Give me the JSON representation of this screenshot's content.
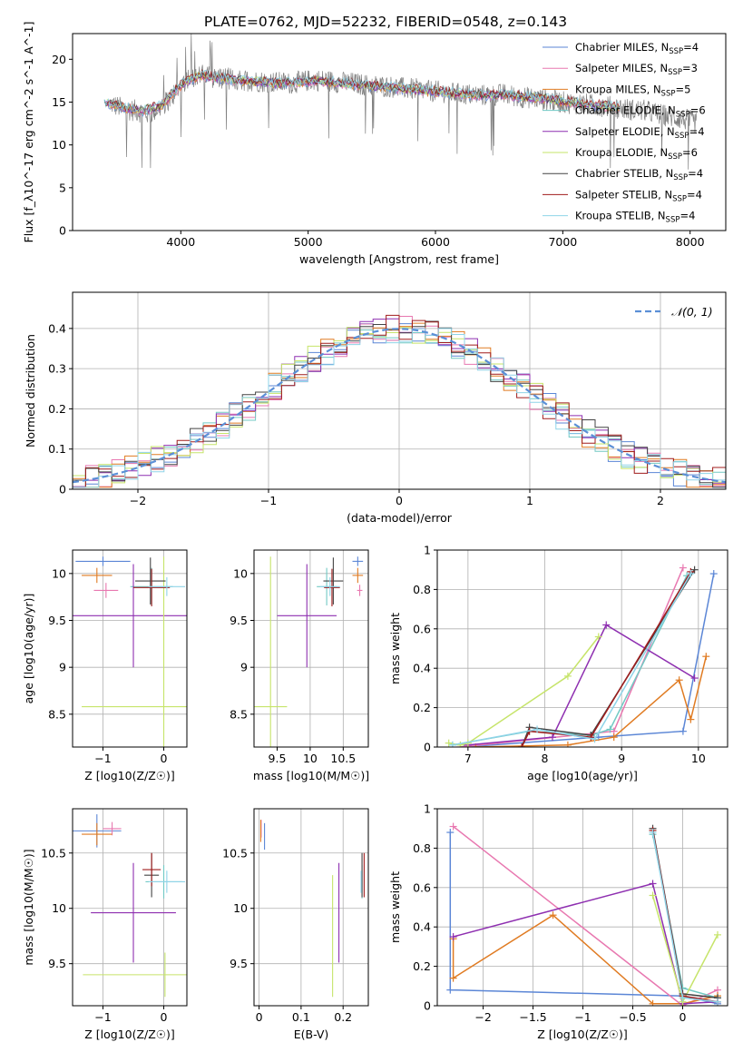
{
  "figure_title": "PLATE=0762, MJD=52232, FIBERID=0548, z=0.143",
  "models": [
    {
      "name": "Chabrier MILES",
      "nssp": "4",
      "color": "#5b86d6"
    },
    {
      "name": "Salpeter MILES",
      "nssp": "3",
      "color": "#e878b0"
    },
    {
      "name": "Kroupa MILES",
      "nssp": "5",
      "color": "#e07b22"
    },
    {
      "name": "Chabrier ELODIE",
      "nssp": "6",
      "color": "#72c9c4"
    },
    {
      "name": "Salpeter ELODIE",
      "nssp": "4",
      "color": "#8e2fb0"
    },
    {
      "name": "Kroupa ELODIE",
      "nssp": "6",
      "color": "#c6e46a"
    },
    {
      "name": "Chabrier STELIB",
      "nssp": "4",
      "color": "#444444"
    },
    {
      "name": "Salpeter STELIB",
      "nssp": "4",
      "color": "#a01c1c"
    },
    {
      "name": "Kroupa STELIB",
      "nssp": "4",
      "color": "#8fd4e8"
    }
  ],
  "chart_data": [
    {
      "id": "spectrum",
      "type": "line",
      "xlabel": "wavelength [Angstrom, rest frame]",
      "ylabel": "Flux [f_λ10^-17 erg cm^-2 s^-1 A^-1]",
      "xlim": [
        3150,
        8280
      ],
      "ylim": [
        0,
        23
      ],
      "xticks": [
        4000,
        5000,
        6000,
        7000,
        8000
      ],
      "yticks": [
        0,
        5,
        10,
        15,
        20
      ],
      "data_color": "#808080",
      "data_x": [
        3450,
        3550,
        3650,
        3750,
        3850,
        3950,
        4050,
        4150,
        4250,
        4350,
        4450,
        4550,
        4650,
        4750,
        4850,
        4950,
        5050,
        5150,
        5250,
        5350,
        5450,
        5550,
        5650,
        5750,
        5850,
        5950,
        6050,
        6150,
        6250,
        6350,
        6450,
        6550,
        6650,
        6750,
        6850,
        6950,
        7050,
        7150,
        7250,
        7350,
        7450,
        7550,
        7650,
        7750,
        7850,
        7950,
        8050
      ],
      "data_y": [
        14.8,
        14.2,
        14.0,
        13.6,
        14.5,
        16.0,
        17.8,
        18.2,
        17.9,
        17.8,
        17.6,
        17.5,
        17.4,
        17.3,
        17.2,
        17.4,
        17.6,
        17.5,
        17.3,
        17.2,
        17.0,
        16.9,
        16.8,
        16.6,
        16.5,
        16.3,
        16.2,
        16.0,
        15.9,
        15.8,
        15.8,
        15.9,
        15.6,
        15.5,
        15.3,
        15.1,
        14.9,
        14.8,
        14.6,
        14.5,
        14.3,
        14.1,
        14.0,
        13.6,
        13.3,
        13.0,
        12.6
      ],
      "model_x": [
        3400,
        3550,
        3700,
        3850,
        4000,
        4150,
        4300,
        4450,
        4600,
        4750,
        4900,
        5050,
        5200,
        5350,
        5500,
        5650,
        5800,
        5950,
        6100,
        6250,
        6400,
        6550,
        6700,
        6850,
        7000,
        7150,
        7300,
        7450
      ],
      "model_y": [
        15.0,
        14.3,
        14.0,
        14.6,
        17.0,
        18.2,
        17.8,
        17.5,
        17.4,
        17.2,
        17.3,
        17.5,
        17.3,
        17.1,
        16.9,
        16.7,
        16.5,
        16.3,
        16.1,
        15.9,
        15.8,
        15.9,
        15.6,
        15.4,
        15.1,
        14.8,
        14.6,
        14.3
      ]
    },
    {
      "id": "residuals",
      "type": "bar",
      "xlabel": "(data-model)/error",
      "ylabel": "Normed distribution",
      "xlim": [
        -2.5,
        2.5
      ],
      "ylim": [
        0,
        0.49
      ],
      "xticks": [
        -2,
        -1,
        0,
        1,
        2
      ],
      "yticks": [
        0.0,
        0.1,
        0.2,
        0.3,
        0.4
      ],
      "legend": "𝒩(0, 1)",
      "bin_width": 0.1,
      "bin_start": -2.5,
      "reference_series": "normal-0-1"
    },
    {
      "id": "age-vs-Z",
      "type": "scatter",
      "xlabel": "Z [log10(Z/Z☉)]",
      "ylabel": "age [log10(age/yr)]",
      "xlim": [
        -1.5,
        0.38
      ],
      "ylim": [
        8.15,
        10.25
      ],
      "xticks": [
        -1,
        0
      ],
      "yticks": [
        8.5,
        9.0,
        9.5,
        10.0
      ],
      "points": [
        {
          "model": 0,
          "x": -1.0,
          "y": 10.13,
          "xerr": 0.45,
          "yerr": 0.05
        },
        {
          "model": 1,
          "x": -0.95,
          "y": 9.82,
          "xerr": 0.2,
          "yerr": 0.08
        },
        {
          "model": 2,
          "x": -1.1,
          "y": 9.98,
          "xerr": 0.25,
          "yerr": 0.08
        },
        {
          "model": 3,
          "x": -0.2,
          "y": 9.86,
          "xerr": 0.35,
          "yerr": 0.2
        },
        {
          "model": 4,
          "x": -0.5,
          "y": 9.55,
          "xerr": 1.1,
          "yerr": 0.55
        },
        {
          "model": 5,
          "x": 0.0,
          "y": 8.58,
          "xerr": 1.35,
          "yerr": 1.6
        },
        {
          "model": 6,
          "x": -0.22,
          "y": 9.92,
          "xerr": 0.25,
          "yerr": 0.25
        },
        {
          "model": 7,
          "x": -0.2,
          "y": 9.85,
          "xerr": 0.3,
          "yerr": 0.2
        },
        {
          "model": 8,
          "x": 0.05,
          "y": 9.86,
          "xerr": 0.3,
          "yerr": 0.1
        }
      ]
    },
    {
      "id": "age-vs-mass",
      "type": "scatter",
      "xlabel": "mass [log10(M/M☉)]",
      "ylabel": "",
      "xlim": [
        9.15,
        10.88
      ],
      "ylim": [
        8.15,
        10.25
      ],
      "xticks": [
        9.5,
        10.0,
        10.5
      ],
      "yticks": [
        8.5,
        9.0,
        9.5,
        10.0
      ],
      "points": [
        {
          "model": 0,
          "x": 10.72,
          "y": 10.13,
          "xerr": 0.08,
          "yerr": 0.05
        },
        {
          "model": 1,
          "x": 10.75,
          "y": 9.82,
          "xerr": 0.04,
          "yerr": 0.06
        },
        {
          "model": 2,
          "x": 10.72,
          "y": 9.98,
          "xerr": 0.08,
          "yerr": 0.08
        },
        {
          "model": 3,
          "x": 10.25,
          "y": 9.86,
          "xerr": 0.15,
          "yerr": 0.2
        },
        {
          "model": 4,
          "x": 9.95,
          "y": 9.55,
          "xerr": 0.45,
          "yerr": 0.55
        },
        {
          "model": 5,
          "x": 9.4,
          "y": 8.58,
          "xerr": 0.25,
          "yerr": 1.6
        },
        {
          "model": 6,
          "x": 10.35,
          "y": 9.92,
          "xerr": 0.15,
          "yerr": 0.25
        },
        {
          "model": 7,
          "x": 10.33,
          "y": 9.85,
          "xerr": 0.12,
          "yerr": 0.2
        },
        {
          "model": 8,
          "x": 10.3,
          "y": 9.86,
          "xerr": 0.15,
          "yerr": 0.1
        }
      ]
    },
    {
      "id": "mass-weight-vs-age",
      "type": "line",
      "xlabel": "age [log10(age/yr)]",
      "ylabel": "mass weight",
      "xlim": [
        6.6,
        10.38
      ],
      "ylim": [
        0,
        1.0
      ],
      "xticks": [
        7,
        8,
        9,
        10
      ],
      "yticks": [
        0.0,
        0.2,
        0.4,
        0.6,
        0.8,
        1.0
      ],
      "series": [
        {
          "model": 0,
          "x": [
            6.95,
            8.7,
            9.8,
            10.2
          ],
          "y": [
            0.0,
            0.05,
            0.08,
            0.88
          ]
        },
        {
          "model": 1,
          "x": [
            6.9,
            8.9,
            9.8
          ],
          "y": [
            0.0,
            0.08,
            0.91
          ]
        },
        {
          "model": 2,
          "x": [
            7.1,
            8.3,
            8.9,
            9.75,
            9.9,
            10.1
          ],
          "y": [
            0.0,
            0.01,
            0.05,
            0.34,
            0.14,
            0.46
          ]
        },
        {
          "model": 3,
          "x": [
            6.8,
            7.8,
            8.6,
            8.85,
            9.85
          ],
          "y": [
            0.01,
            0.08,
            0.06,
            0.09,
            0.87
          ]
        },
        {
          "model": 4,
          "x": [
            7.0,
            8.1,
            8.8,
            9.95
          ],
          "y": [
            0.01,
            0.05,
            0.62,
            0.35
          ]
        },
        {
          "model": 5,
          "x": [
            6.75,
            6.9,
            7.0,
            8.3,
            8.7
          ],
          "y": [
            0.02,
            0.01,
            0.02,
            0.36,
            0.56
          ]
        },
        {
          "model": 6,
          "x": [
            7.7,
            7.8,
            8.6,
            9.95
          ],
          "y": [
            0.0,
            0.1,
            0.06,
            0.9
          ]
        },
        {
          "model": 7,
          "x": [
            7.7,
            7.8,
            8.6,
            9.9
          ],
          "y": [
            0.0,
            0.08,
            0.05,
            0.89
          ]
        },
        {
          "model": 8,
          "x": [
            6.8,
            7.9,
            8.65,
            9.9
          ],
          "y": [
            0.01,
            0.09,
            0.04,
            0.88
          ]
        }
      ]
    },
    {
      "id": "mass-vs-Z",
      "type": "scatter",
      "xlabel": "Z [log10(Z/Z☉)]",
      "ylabel": "mass [log10(M/M☉)]",
      "xlim": [
        -1.5,
        0.38
      ],
      "ylim": [
        9.12,
        10.9
      ],
      "xticks": [
        -1,
        0
      ],
      "yticks": [
        9.5,
        10.0,
        10.5
      ],
      "points": [
        {
          "model": 0,
          "x": -1.1,
          "y": 10.7,
          "xerr": 0.4,
          "yerr": 0.15
        },
        {
          "model": 1,
          "x": -0.85,
          "y": 10.72,
          "xerr": 0.15,
          "yerr": 0.06
        },
        {
          "model": 2,
          "x": -1.1,
          "y": 10.67,
          "xerr": 0.25,
          "yerr": 0.1
        },
        {
          "model": 3,
          "x": 0.0,
          "y": 10.24,
          "xerr": 0.3,
          "yerr": 0.15
        },
        {
          "model": 4,
          "x": -0.5,
          "y": 9.96,
          "xerr": 0.7,
          "yerr": 0.45
        },
        {
          "model": 5,
          "x": 0.02,
          "y": 9.4,
          "xerr": 1.35,
          "yerr": 0.2
        },
        {
          "model": 6,
          "x": -0.2,
          "y": 10.3,
          "xerr": 0.12,
          "yerr": 0.2
        },
        {
          "model": 7,
          "x": -0.2,
          "y": 10.35,
          "xerr": 0.15,
          "yerr": 0.15
        },
        {
          "model": 8,
          "x": 0.05,
          "y": 10.24,
          "xerr": 0.3,
          "yerr": 0.1
        }
      ]
    },
    {
      "id": "mass-vs-ebv",
      "type": "scatter",
      "xlabel": "E(B-V)",
      "ylabel": "",
      "xlim": [
        -0.012,
        0.26
      ],
      "ylim": [
        9.12,
        10.9
      ],
      "xticks": [
        0.0,
        0.1,
        0.2
      ],
      "yticks": [
        9.5,
        10.0,
        10.5
      ],
      "points": [
        {
          "model": 0,
          "x": 0.013,
          "y": 10.65,
          "xerr": 0.0,
          "yerr": 0.12
        },
        {
          "model": 1,
          "x": 0.005,
          "y": 10.72,
          "xerr": 0.0,
          "yerr": 0.08
        },
        {
          "model": 2,
          "x": 0.004,
          "y": 10.7,
          "xerr": 0.0,
          "yerr": 0.1
        },
        {
          "model": 3,
          "x": 0.245,
          "y": 10.24,
          "xerr": 0.0,
          "yerr": 0.15
        },
        {
          "model": 4,
          "x": 0.19,
          "y": 9.96,
          "xerr": 0.0,
          "yerr": 0.45
        },
        {
          "model": 5,
          "x": 0.175,
          "y": 9.75,
          "xerr": 0.0,
          "yerr": 0.55
        },
        {
          "model": 6,
          "x": 0.245,
          "y": 10.3,
          "xerr": 0.0,
          "yerr": 0.2
        },
        {
          "model": 7,
          "x": 0.25,
          "y": 10.3,
          "xerr": 0.0,
          "yerr": 0.2
        },
        {
          "model": 8,
          "x": 0.243,
          "y": 10.24,
          "xerr": 0.0,
          "yerr": 0.1
        }
      ]
    },
    {
      "id": "mass-weight-vs-Z",
      "type": "line",
      "xlabel": "Z [log10(Z/Z☉)]",
      "ylabel": "mass weight",
      "xlim": [
        -2.46,
        0.45
      ],
      "ylim": [
        0,
        1.0
      ],
      "xticks": [
        -2.0,
        -1.5,
        -1.0,
        -0.5,
        0.0
      ],
      "yticks": [
        0.0,
        0.2,
        0.4,
        0.6,
        0.8,
        1.0
      ],
      "series": [
        {
          "model": 0,
          "x": [
            -2.33,
            -2.33,
            0.0,
            0.35
          ],
          "y": [
            0.88,
            0.08,
            0.05,
            0.01
          ]
        },
        {
          "model": 1,
          "x": [
            -2.3,
            0.0,
            0.35
          ],
          "y": [
            0.91,
            0.0,
            0.08
          ]
        },
        {
          "model": 2,
          "x": [
            -2.3,
            -2.3,
            -1.3,
            -0.3,
            0.0,
            0.35
          ],
          "y": [
            0.34,
            0.14,
            0.46,
            0.01,
            0.01,
            0.05
          ]
        },
        {
          "model": 3,
          "x": [
            -0.3,
            0.0,
            0.35
          ],
          "y": [
            0.87,
            0.09,
            0.04
          ]
        },
        {
          "model": 4,
          "x": [
            -2.3,
            -0.3,
            0.0,
            0.35
          ],
          "y": [
            0.35,
            0.62,
            0.01,
            0.02
          ]
        },
        {
          "model": 5,
          "x": [
            -0.3,
            0.0,
            0.35
          ],
          "y": [
            0.56,
            0.02,
            0.36
          ]
        },
        {
          "model": 6,
          "x": [
            -0.3,
            0.0,
            0.35
          ],
          "y": [
            0.9,
            0.06,
            0.04
          ]
        },
        {
          "model": 7,
          "x": [
            -0.3,
            0.0,
            0.35
          ],
          "y": [
            0.89,
            0.05,
            0.02
          ]
        },
        {
          "model": 8,
          "x": [
            -0.3,
            0.0,
            0.35
          ],
          "y": [
            0.88,
            0.04,
            0.02
          ]
        }
      ]
    }
  ]
}
